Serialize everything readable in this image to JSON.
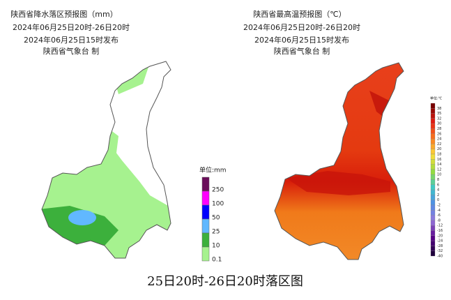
{
  "left": {
    "title": "陕西省降水落区预报图（mm）",
    "period": "2024年06月25日20时-26日20时",
    "issued": "2024年06月25日15时发布",
    "maker": "陕西省气象台 制",
    "legend": {
      "unit": "单位:mm",
      "labels": [
        "250",
        "100",
        "50",
        "25",
        "10",
        "0.1"
      ],
      "colors": [
        "#6a0d5a",
        "#ff00ff",
        "#0000ff",
        "#61b8ff",
        "#3cb03c",
        "#a6f28f"
      ]
    }
  },
  "right": {
    "title": "陕西省最高温预报图（℃）",
    "period": "2024年06月25日20时-26日20时",
    "issued": "2024年06月25日15时发布",
    "maker": "陕西省气象台 制",
    "legend": {
      "unit": "单位:℃",
      "labels": [
        "38",
        "35",
        "32",
        "30",
        "28",
        "26",
        "24",
        "22",
        "20",
        "18",
        "16",
        "14",
        "12",
        "10",
        "8",
        "6",
        "4",
        "2",
        "0",
        "-2",
        "-4",
        "-6",
        "-8",
        "-12",
        "-16",
        "-20",
        "-24",
        "-28",
        "-32",
        "-40"
      ]
    }
  },
  "caption": "25日20时-26日20时落区图"
}
